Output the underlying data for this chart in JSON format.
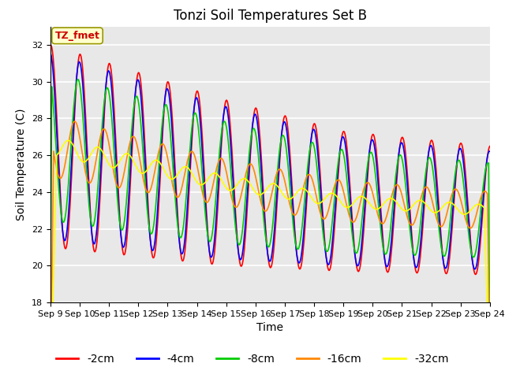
{
  "title": "Tonzi Soil Temperatures Set B",
  "xlabel": "Time",
  "ylabel": "Soil Temperature (C)",
  "ylim": [
    18,
    33
  ],
  "yticks": [
    18,
    20,
    22,
    24,
    26,
    28,
    30,
    32
  ],
  "xtick_labels": [
    "Sep 9",
    "Sep 10",
    "Sep 11",
    "Sep 12",
    "Sep 13",
    "Sep 14",
    "Sep 15",
    "Sep 16",
    "Sep 17",
    "Sep 18",
    "Sep 19",
    "Sep 20",
    "Sep 21",
    "Sep 22",
    "Sep 23",
    "Sep 24"
  ],
  "series_labels": [
    "-2cm",
    "-4cm",
    "-8cm",
    "-16cm",
    "-32cm"
  ],
  "series_colors": [
    "#ff0000",
    "#0000ff",
    "#00cc00",
    "#ff8800",
    "#ffff00"
  ],
  "line_widths": [
    1.2,
    1.2,
    1.2,
    1.2,
    1.2
  ],
  "plot_bg": "#e8e8e8",
  "title_fontsize": 12,
  "axis_label_fontsize": 10,
  "tick_fontsize": 8,
  "legend_fontsize": 10,
  "legend_box_bg": "#ffffcc",
  "legend_box_text": "#cc0000",
  "legend_box_label": "TZ_fmet",
  "legend_box_edgecolor": "#999900"
}
